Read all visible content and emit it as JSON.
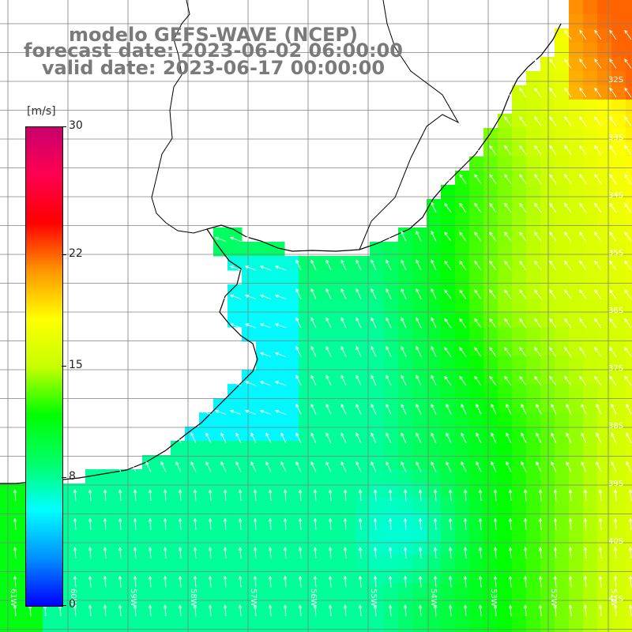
{
  "title": {
    "line1": "modelo GEFS-WAVE (NCEP)",
    "line2": "forecast date: 2023-06-02 06:00:00",
    "line3": "valid date: 2023-06-17 00:00:00"
  },
  "colorbar": {
    "units": "[m/s]",
    "min": 0,
    "max": 30,
    "ticks": [
      "30",
      "22",
      "15",
      "8",
      "0"
    ],
    "tick_values": [
      30,
      22,
      15,
      8,
      0
    ],
    "colors": [
      "#0000ff",
      "#0090ff",
      "#00ffff",
      "#00ff66",
      "#00ff00",
      "#c8ff00",
      "#ffff00",
      "#ff9600",
      "#ff0000",
      "#ff0050",
      "#c8006e"
    ]
  },
  "map": {
    "lat_labels": [
      "32S",
      "33S",
      "34S",
      "35S",
      "36S",
      "37S",
      "38S",
      "39S",
      "40S",
      "41S"
    ],
    "lon_labels": [
      "61W",
      "60W",
      "59W",
      "58W",
      "57W",
      "56W",
      "55W",
      "54W",
      "53W",
      "52W",
      "51W"
    ],
    "field": "wind speed",
    "arrow_color": "#ffffff",
    "coast_color": "#000000",
    "grid_color": "#808080"
  }
}
